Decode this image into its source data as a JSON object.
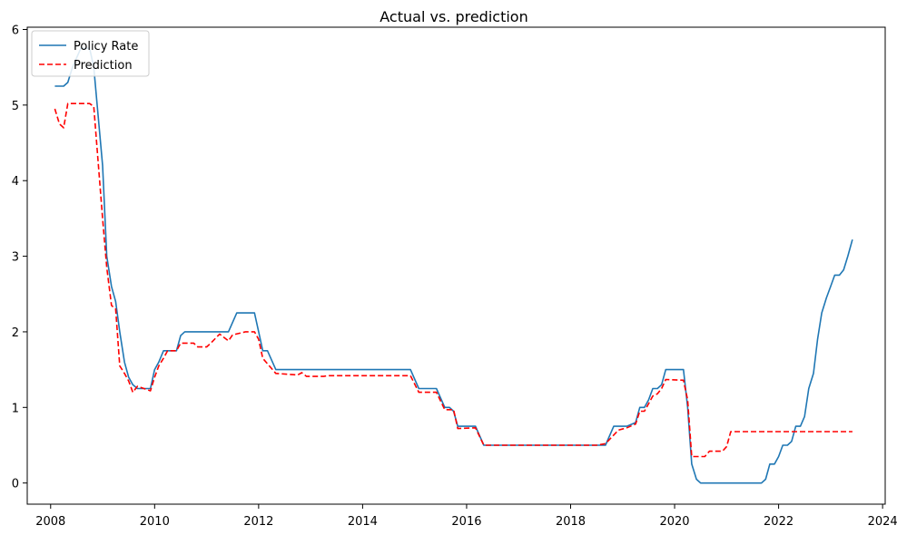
{
  "chart_data": {
    "type": "line",
    "title": "Actual vs. prediction",
    "xlabel": "",
    "ylabel": "",
    "xlim": [
      2007.55,
      2024.05
    ],
    "ylim": [
      -0.28,
      6.03
    ],
    "xticks": [
      2008,
      2010,
      2012,
      2014,
      2016,
      2018,
      2020,
      2022,
      2024
    ],
    "yticks": [
      0,
      1,
      2,
      3,
      4,
      5,
      6
    ],
    "grid": false,
    "legend": {
      "placement": "top-left"
    },
    "series": [
      {
        "name": "Policy Rate",
        "color": "#1f77b4",
        "style": "solid",
        "points": [
          [
            2008.08,
            5.25
          ],
          [
            2008.25,
            5.25
          ],
          [
            2008.33,
            5.3
          ],
          [
            2008.42,
            5.5
          ],
          [
            2008.58,
            5.75
          ],
          [
            2008.75,
            5.75
          ],
          [
            2008.83,
            5.5
          ],
          [
            2009.0,
            4.2
          ],
          [
            2009.08,
            3.0
          ],
          [
            2009.17,
            2.6
          ],
          [
            2009.25,
            2.4
          ],
          [
            2009.33,
            2.0
          ],
          [
            2009.42,
            1.6
          ],
          [
            2009.5,
            1.4
          ],
          [
            2009.58,
            1.3
          ],
          [
            2009.67,
            1.25
          ],
          [
            2009.75,
            1.25
          ],
          [
            2009.92,
            1.25
          ],
          [
            2010.0,
            1.5
          ],
          [
            2010.08,
            1.6
          ],
          [
            2010.17,
            1.75
          ],
          [
            2010.25,
            1.75
          ],
          [
            2010.33,
            1.75
          ],
          [
            2010.42,
            1.75
          ],
          [
            2010.5,
            1.95
          ],
          [
            2010.58,
            2.0
          ],
          [
            2011.33,
            2.0
          ],
          [
            2011.42,
            2.0
          ],
          [
            2011.58,
            2.25
          ],
          [
            2011.92,
            2.25
          ],
          [
            2012.0,
            2.0
          ],
          [
            2012.08,
            1.75
          ],
          [
            2012.17,
            1.75
          ],
          [
            2012.33,
            1.5
          ],
          [
            2014.92,
            1.5
          ],
          [
            2015.08,
            1.25
          ],
          [
            2015.42,
            1.25
          ],
          [
            2015.58,
            1.0
          ],
          [
            2015.67,
            1.0
          ],
          [
            2015.75,
            0.95
          ],
          [
            2015.83,
            0.75
          ],
          [
            2016.17,
            0.75
          ],
          [
            2016.33,
            0.5
          ],
          [
            2018.67,
            0.5
          ],
          [
            2018.83,
            0.75
          ],
          [
            2019.08,
            0.75
          ],
          [
            2019.25,
            0.8
          ],
          [
            2019.33,
            1.0
          ],
          [
            2019.42,
            1.0
          ],
          [
            2019.5,
            1.1
          ],
          [
            2019.58,
            1.25
          ],
          [
            2019.67,
            1.25
          ],
          [
            2019.75,
            1.3
          ],
          [
            2019.83,
            1.5
          ],
          [
            2020.17,
            1.5
          ],
          [
            2020.25,
            1.0
          ],
          [
            2020.33,
            0.25
          ],
          [
            2020.42,
            0.05
          ],
          [
            2020.5,
            0.0
          ],
          [
            2021.67,
            0.0
          ],
          [
            2021.75,
            0.05
          ],
          [
            2021.83,
            0.25
          ],
          [
            2021.92,
            0.25
          ],
          [
            2022.0,
            0.35
          ],
          [
            2022.08,
            0.5
          ],
          [
            2022.17,
            0.5
          ],
          [
            2022.25,
            0.55
          ],
          [
            2022.33,
            0.75
          ],
          [
            2022.42,
            0.75
          ],
          [
            2022.5,
            0.88
          ],
          [
            2022.58,
            1.25
          ],
          [
            2022.67,
            1.45
          ],
          [
            2022.75,
            1.9
          ],
          [
            2022.83,
            2.25
          ],
          [
            2022.92,
            2.45
          ],
          [
            2023.0,
            2.6
          ],
          [
            2023.08,
            2.75
          ],
          [
            2023.17,
            2.75
          ],
          [
            2023.25,
            2.82
          ],
          [
            2023.33,
            3.0
          ],
          [
            2023.42,
            3.22
          ]
        ]
      },
      {
        "name": "Prediction",
        "color": "#ff0000",
        "style": "dashed",
        "points": [
          [
            2008.08,
            4.95
          ],
          [
            2008.17,
            4.75
          ],
          [
            2008.25,
            4.7
          ],
          [
            2008.33,
            5.02
          ],
          [
            2008.75,
            5.02
          ],
          [
            2008.83,
            4.98
          ],
          [
            2009.0,
            3.5
          ],
          [
            2009.08,
            2.85
          ],
          [
            2009.17,
            2.35
          ],
          [
            2009.25,
            2.3
          ],
          [
            2009.33,
            1.55
          ],
          [
            2009.42,
            1.45
          ],
          [
            2009.5,
            1.35
          ],
          [
            2009.58,
            1.2
          ],
          [
            2009.67,
            1.28
          ],
          [
            2009.92,
            1.22
          ],
          [
            2010.0,
            1.4
          ],
          [
            2010.08,
            1.55
          ],
          [
            2010.17,
            1.65
          ],
          [
            2010.25,
            1.75
          ],
          [
            2010.42,
            1.75
          ],
          [
            2010.5,
            1.85
          ],
          [
            2010.75,
            1.85
          ],
          [
            2010.83,
            1.8
          ],
          [
            2011.0,
            1.8
          ],
          [
            2011.08,
            1.85
          ],
          [
            2011.25,
            1.97
          ],
          [
            2011.42,
            1.88
          ],
          [
            2011.5,
            1.96
          ],
          [
            2011.75,
            2.0
          ],
          [
            2011.92,
            2.0
          ],
          [
            2012.0,
            1.9
          ],
          [
            2012.08,
            1.65
          ],
          [
            2012.33,
            1.45
          ],
          [
            2012.75,
            1.43
          ],
          [
            2012.83,
            1.46
          ],
          [
            2012.92,
            1.41
          ],
          [
            2013.25,
            1.41
          ],
          [
            2013.33,
            1.42
          ],
          [
            2014.92,
            1.42
          ],
          [
            2015.08,
            1.2
          ],
          [
            2015.42,
            1.2
          ],
          [
            2015.58,
            0.97
          ],
          [
            2015.75,
            0.97
          ],
          [
            2015.83,
            0.72
          ],
          [
            2016.17,
            0.73
          ],
          [
            2016.33,
            0.5
          ],
          [
            2018.5,
            0.5
          ],
          [
            2018.67,
            0.52
          ],
          [
            2018.92,
            0.7
          ],
          [
            2019.08,
            0.73
          ],
          [
            2019.25,
            0.78
          ],
          [
            2019.33,
            0.95
          ],
          [
            2019.42,
            0.95
          ],
          [
            2019.58,
            1.15
          ],
          [
            2019.67,
            1.18
          ],
          [
            2019.75,
            1.25
          ],
          [
            2019.83,
            1.37
          ],
          [
            2020.17,
            1.36
          ],
          [
            2020.25,
            1.1
          ],
          [
            2020.33,
            0.35
          ],
          [
            2020.58,
            0.35
          ],
          [
            2020.67,
            0.42
          ],
          [
            2020.92,
            0.42
          ],
          [
            2021.0,
            0.48
          ],
          [
            2021.08,
            0.68
          ],
          [
            2023.42,
            0.68
          ]
        ]
      }
    ]
  }
}
